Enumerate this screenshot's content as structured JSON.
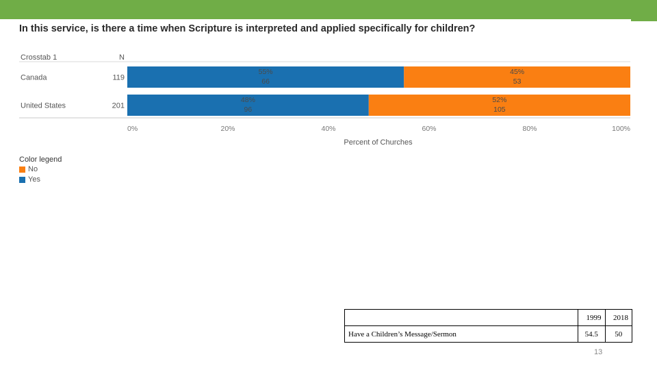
{
  "slide": {
    "title": "In this service, is there a time when Scripture is interpreted and applied specifically for children?",
    "page_number": "13"
  },
  "chart_data": {
    "type": "bar",
    "orientation": "horizontal",
    "stacked": true,
    "row_header": "Crosstab 1",
    "n_header": "N",
    "categories": [
      "Canada",
      "United States"
    ],
    "n": [
      "119",
      "201"
    ],
    "series": [
      {
        "name": "Yes",
        "color": "#1a70b0",
        "values": [
          55,
          48
        ],
        "counts": [
          66,
          96
        ]
      },
      {
        "name": "No",
        "color": "#fa7f12",
        "values": [
          45,
          52
        ],
        "counts": [
          53,
          105
        ]
      }
    ],
    "xlim": [
      0,
      100
    ],
    "x_ticks": [
      "0%",
      "20%",
      "40%",
      "60%",
      "80%",
      "100%"
    ],
    "xlabel": "Percent of Churches",
    "legend_title": "Color legend",
    "legend_entries": [
      "No",
      "Yes"
    ]
  },
  "table": {
    "header": [
      "",
      "1999",
      "2018"
    ],
    "rows": [
      [
        "Have a Children’s Message/Sermon",
        "54.5",
        "50"
      ]
    ]
  }
}
